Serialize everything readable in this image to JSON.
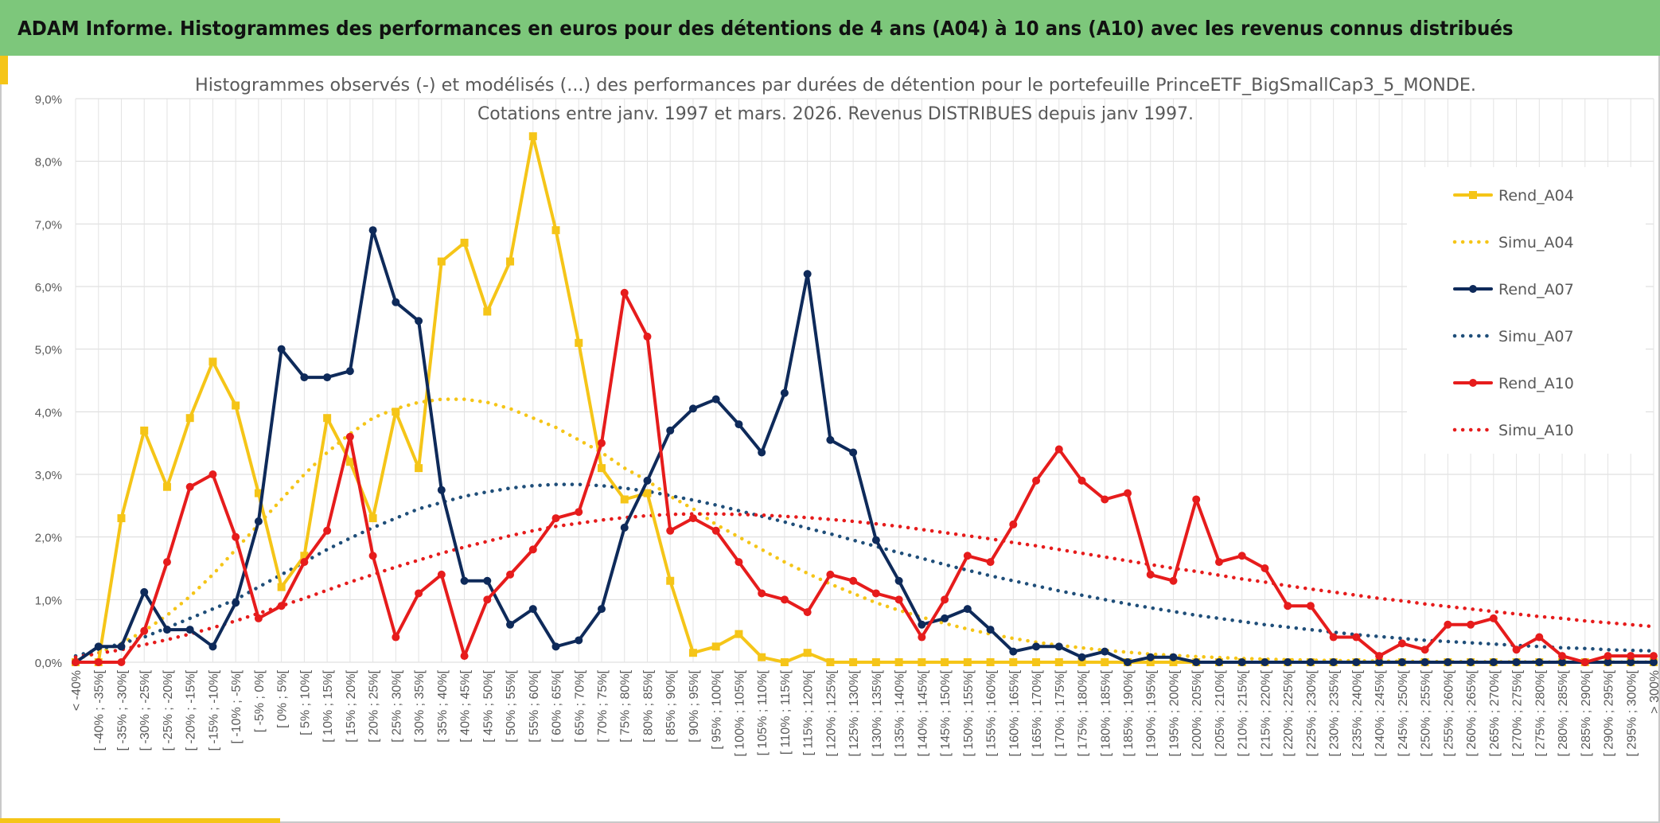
{
  "banner": {
    "title": "ADAM Informe. Histogrammes des performances en euros pour des détentions de 4 ans (A04) à 10 ans (A10) avec les revenus connus distribués"
  },
  "chart_data": {
    "type": "line",
    "title_line1": "Histogrammes observés (-) et modélisés (...) des performances par durées de détention pour le portefeuille PrinceETF_BigSmallCap3_5_MONDE.",
    "title_line2": "Cotations entre janv. 1997 et mars. 2026. Revenus DISTRIBUES depuis janv 1997.",
    "ylim": [
      0,
      9
    ],
    "y_ticks": [
      {
        "value": 0,
        "label": "0,0%"
      },
      {
        "value": 1,
        "label": "1,0%"
      },
      {
        "value": 2,
        "label": "2,0%"
      },
      {
        "value": 3,
        "label": "3,0%"
      },
      {
        "value": 4,
        "label": "4,0%"
      },
      {
        "value": 5,
        "label": "5,0%"
      },
      {
        "value": 6,
        "label": "6,0%"
      },
      {
        "value": 7,
        "label": "7,0%"
      },
      {
        "value": 8,
        "label": "8,0%"
      },
      {
        "value": 9,
        "label": "9,0%"
      }
    ],
    "legend_position": "right",
    "categories": [
      "< -40%",
      "[ -40% ; -35%[",
      "[ -35% ; -30%[",
      "[ -30% ; -25%[",
      "[ -25% ; -20%[",
      "[ -20% ; -15%[",
      "[ -15% ; -10%[",
      "[ -10% ; -5%[",
      "[ -5% ; 0%[",
      "[ 0% ; 5%[",
      "[ 5% ; 10%[",
      "[ 10% ; 15%[",
      "[ 15% ; 20%[",
      "[ 20% ; 25%[",
      "[ 25% ; 30%[",
      "[ 30% ; 35%[",
      "[ 35% ; 40%[",
      "[ 40% ; 45%[",
      "[ 45% ; 50%[",
      "[ 50% ; 55%[",
      "[ 55% ; 60%[",
      "[ 60% ; 65%[",
      "[ 65% ; 70%[",
      "[ 70% ; 75%[",
      "[ 75% ; 80%[",
      "[ 80% ; 85%[",
      "[ 85% ; 90%[",
      "[ 90% ; 95%[",
      "[ 95% ; 100%[",
      "[ 100% ; 105%[",
      "[ 105% ; 110%[",
      "[ 110% ; 115%[",
      "[ 115% ; 120%[",
      "[ 120% ; 125%[",
      "[ 125% ; 130%[",
      "[ 130% ; 135%[",
      "[ 135% ; 140%[",
      "[ 140% ; 145%[",
      "[ 145% ; 150%[",
      "[ 150% ; 155%[",
      "[ 155% ; 160%[",
      "[ 160% ; 165%[",
      "[ 165% ; 170%[",
      "[ 170% ; 175%[",
      "[ 175% ; 180%[",
      "[ 180% ; 185%[",
      "[ 185% ; 190%[",
      "[ 190% ; 195%[",
      "[ 195% ; 200%[",
      "[ 200% ; 205%[",
      "[ 205% ; 210%[",
      "[ 210% ; 215%[",
      "[ 215% ; 220%[",
      "[ 220% ; 225%[",
      "[ 225% ; 230%[",
      "[ 230% ; 235%[",
      "[ 235% ; 240%[",
      "[ 240% ; 245%[",
      "[ 245% ; 250%[",
      "[ 250% ; 255%[",
      "[ 255% ; 260%[",
      "[ 260% ; 265%[",
      "[ 265% ; 270%[",
      "[ 270% ; 275%[",
      "[ 275% ; 280%[",
      "[ 280% ; 285%[",
      "[ 285% ; 290%[",
      "[ 290% ; 295%[",
      "[ 295% ; 300%[",
      "> 300%"
    ],
    "series": [
      {
        "name": "Rend_A04",
        "color": "#f5c518",
        "style": "solid",
        "marker": "square",
        "values": [
          0.0,
          0.0,
          2.3,
          3.7,
          2.8,
          3.9,
          4.8,
          4.1,
          2.7,
          1.2,
          1.7,
          3.9,
          3.2,
          2.3,
          4.0,
          3.1,
          6.4,
          6.7,
          5.6,
          6.4,
          8.4,
          6.9,
          5.1,
          3.1,
          2.6,
          2.7,
          1.3,
          0.15,
          0.25,
          0.45,
          0.08,
          0.0,
          0.15,
          0.0,
          0.0,
          0.0,
          0.0,
          0.0,
          0.0,
          0.0,
          0.0,
          0.0,
          0.0,
          0.0,
          0.0,
          0.0,
          0.0,
          0.0,
          0.0,
          0.0,
          0.0,
          0.0,
          0.0,
          0.0,
          0.0,
          0.0,
          0.0,
          0.0,
          0.0,
          0.0,
          0.0,
          0.0,
          0.0,
          0.0,
          0.0,
          0.0,
          0.0,
          0.0,
          0.0,
          0.0
        ]
      },
      {
        "name": "Simu_A04",
        "color": "#f5c518",
        "style": "dotted",
        "marker": "none",
        "values": [
          0.05,
          0.15,
          0.3,
          0.5,
          0.75,
          1.05,
          1.4,
          1.8,
          2.2,
          2.6,
          3.0,
          3.35,
          3.65,
          3.9,
          4.05,
          4.15,
          4.2,
          4.2,
          4.15,
          4.05,
          3.9,
          3.75,
          3.55,
          3.35,
          3.1,
          2.9,
          2.65,
          2.45,
          2.2,
          2.0,
          1.8,
          1.6,
          1.42,
          1.25,
          1.1,
          0.95,
          0.83,
          0.72,
          0.62,
          0.53,
          0.45,
          0.38,
          0.32,
          0.27,
          0.23,
          0.19,
          0.16,
          0.13,
          0.11,
          0.09,
          0.075,
          0.06,
          0.05,
          0.04,
          0.033,
          0.027,
          0.022,
          0.018,
          0.014,
          0.011,
          0.009,
          0.007,
          0.006,
          0.005,
          0.004,
          0.003,
          0.002,
          0.002,
          0.001,
          0.001
        ]
      },
      {
        "name": "Rend_A07",
        "color": "#0e2a5a",
        "style": "solid",
        "marker": "circle",
        "values": [
          0.0,
          0.25,
          0.25,
          1.12,
          0.52,
          0.52,
          0.25,
          0.95,
          2.25,
          5.0,
          4.55,
          4.55,
          4.65,
          6.9,
          5.75,
          5.45,
          2.75,
          1.3,
          1.3,
          0.6,
          0.85,
          0.25,
          0.35,
          0.85,
          2.15,
          2.9,
          3.7,
          4.05,
          4.2,
          3.8,
          3.35,
          4.3,
          6.2,
          3.55,
          3.35,
          1.95,
          1.3,
          0.6,
          0.7,
          0.85,
          0.52,
          0.17,
          0.25,
          0.25,
          0.08,
          0.17,
          0.0,
          0.08,
          0.08,
          0.0,
          0.0,
          0.0,
          0.0,
          0.0,
          0.0,
          0.0,
          0.0,
          0.0,
          0.0,
          0.0,
          0.0,
          0.0,
          0.0,
          0.0,
          0.0,
          0.0,
          0.0,
          0.0,
          0.0,
          0.0
        ]
      },
      {
        "name": "Simu_A07",
        "color": "#1f4e79",
        "style": "dotted",
        "marker": "none",
        "values": [
          0.1,
          0.2,
          0.3,
          0.4,
          0.55,
          0.7,
          0.85,
          1.0,
          1.2,
          1.4,
          1.6,
          1.8,
          1.98,
          2.15,
          2.3,
          2.45,
          2.55,
          2.65,
          2.72,
          2.78,
          2.82,
          2.84,
          2.84,
          2.82,
          2.78,
          2.73,
          2.66,
          2.59,
          2.51,
          2.42,
          2.33,
          2.24,
          2.14,
          2.05,
          1.95,
          1.85,
          1.75,
          1.66,
          1.56,
          1.47,
          1.38,
          1.3,
          1.22,
          1.14,
          1.07,
          1.0,
          0.93,
          0.87,
          0.81,
          0.75,
          0.7,
          0.65,
          0.6,
          0.56,
          0.52,
          0.48,
          0.44,
          0.41,
          0.38,
          0.35,
          0.33,
          0.31,
          0.29,
          0.27,
          0.25,
          0.23,
          0.22,
          0.2,
          0.19,
          0.18
        ]
      },
      {
        "name": "Rend_A10",
        "color": "#e61c1c",
        "style": "solid",
        "marker": "circle",
        "values": [
          0.0,
          0.0,
          0.0,
          0.5,
          1.6,
          2.8,
          3.0,
          2.0,
          0.7,
          0.9,
          1.6,
          2.1,
          3.6,
          1.7,
          0.4,
          1.1,
          1.4,
          0.1,
          1.0,
          1.4,
          1.8,
          2.3,
          2.4,
          3.5,
          5.9,
          5.2,
          2.1,
          2.3,
          2.1,
          1.6,
          1.1,
          1.0,
          0.8,
          1.4,
          1.3,
          1.1,
          1.0,
          0.4,
          1.0,
          1.7,
          1.6,
          2.2,
          2.9,
          3.4,
          2.9,
          2.6,
          2.7,
          1.4,
          1.3,
          2.6,
          1.6,
          1.7,
          1.5,
          0.9,
          0.9,
          0.4,
          0.4,
          0.1,
          0.3,
          0.2,
          0.6,
          0.6,
          0.7,
          0.2,
          0.4,
          0.1,
          0.0,
          0.1,
          0.1,
          0.1
        ]
      },
      {
        "name": "Simu_A10",
        "color": "#e61c1c",
        "style": "dotted",
        "marker": "none",
        "values": [
          0.08,
          0.14,
          0.2,
          0.28,
          0.36,
          0.45,
          0.55,
          0.66,
          0.78,
          0.9,
          1.02,
          1.15,
          1.28,
          1.4,
          1.52,
          1.63,
          1.74,
          1.84,
          1.93,
          2.02,
          2.1,
          2.17,
          2.22,
          2.27,
          2.31,
          2.34,
          2.36,
          2.37,
          2.37,
          2.36,
          2.35,
          2.33,
          2.31,
          2.28,
          2.25,
          2.21,
          2.17,
          2.12,
          2.07,
          2.02,
          1.97,
          1.91,
          1.86,
          1.8,
          1.74,
          1.68,
          1.62,
          1.56,
          1.5,
          1.45,
          1.39,
          1.33,
          1.28,
          1.22,
          1.17,
          1.12,
          1.07,
          1.02,
          0.98,
          0.93,
          0.89,
          0.85,
          0.81,
          0.77,
          0.73,
          0.7,
          0.66,
          0.63,
          0.6,
          0.57
        ]
      }
    ]
  }
}
